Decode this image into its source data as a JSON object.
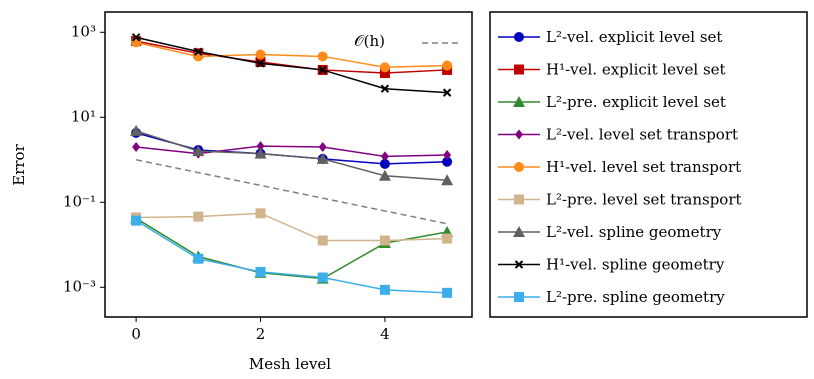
{
  "chart_data": {
    "type": "line",
    "x_label": "Mesh level",
    "y_label": "Error",
    "x": [
      0,
      1,
      2,
      3,
      4,
      5
    ],
    "xlim": [
      -0.5,
      5.4
    ],
    "xticks": [
      0,
      2,
      4
    ],
    "ylim": [
      0.0002,
      3000
    ],
    "ylog": true,
    "yticks": [
      {
        "value": 1000,
        "label": "10³"
      },
      {
        "value": 10,
        "label": "10¹"
      },
      {
        "value": 0.1,
        "label": "10⁻¹"
      },
      {
        "value": 0.001,
        "label": "10⁻³"
      }
    ],
    "legend": "outside right",
    "reference": {
      "label": "𝒪(h)",
      "color": "#808080",
      "values": [
        1,
        0.5,
        0.25,
        0.125,
        0.0625,
        0.03125
      ]
    },
    "series": [
      {
        "name": "L²-vel. explicit level set",
        "color": "#0000c0",
        "marker": "circle",
        "values": [
          4.3,
          1.7,
          1.4,
          1.05,
          0.8,
          0.9
        ]
      },
      {
        "name": "H¹-vel. explicit level set",
        "color": "#c00000",
        "marker": "square",
        "values": [
          620,
          320,
          200,
          130,
          110,
          130
        ]
      },
      {
        "name": "L²-pre. explicit level set",
        "color": "#2e8b2e",
        "marker": "triangle",
        "values": [
          0.042,
          0.0053,
          0.0022,
          0.0016,
          0.011,
          0.02
        ]
      },
      {
        "name": "L²-vel. level set transport",
        "color": "#800080",
        "marker": "diamond",
        "values": [
          2.0,
          1.4,
          2.1,
          2.0,
          1.2,
          1.3
        ]
      },
      {
        "name": "H¹-vel. level set transport",
        "color": "#ff8c1a",
        "marker": "circle",
        "values": [
          580,
          270,
          300,
          270,
          150,
          165
        ]
      },
      {
        "name": "L²-pre. level set transport",
        "color": "#d2b48c",
        "marker": "square",
        "values": [
          0.044,
          0.046,
          0.055,
          0.0126,
          0.0126,
          0.014
        ]
      },
      {
        "name": "L²-vel. spline geometry",
        "color": "#606060",
        "marker": "triangle",
        "values": [
          4.8,
          1.6,
          1.4,
          1.05,
          0.42,
          0.33
        ]
      },
      {
        "name": "H¹-vel. spline geometry",
        "color": "#000000",
        "marker": "x",
        "values": [
          760,
          350,
          185,
          130,
          47,
          38
        ]
      },
      {
        "name": "L²-pre. spline geometry",
        "color": "#3daee9",
        "marker": "square",
        "values": [
          0.037,
          0.0047,
          0.0023,
          0.0017,
          0.00087,
          0.00074
        ]
      }
    ]
  }
}
